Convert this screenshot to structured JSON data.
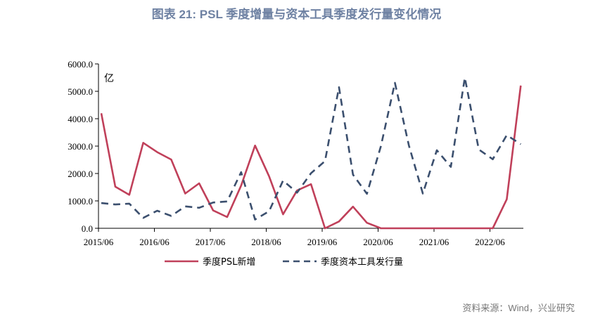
{
  "figure_title": "图表 21: PSL 季度增量与资本工具季度发行量变化情况",
  "source": "资料来源：Wind，兴业研究",
  "colors": {
    "psl": "#c0405a",
    "capital": "#3b4f6e"
  },
  "chart_data": {
    "type": "line",
    "unit_label": "亿",
    "ylim": [
      0,
      6000
    ],
    "y_ticks": [
      "0.0",
      "1000.0",
      "2000.0",
      "3000.0",
      "4000.0",
      "5000.0",
      "6000.0"
    ],
    "x_ticks": [
      "2015/06",
      "2016/06",
      "2017/06",
      "2018/06",
      "2019/06",
      "2020/06",
      "2021/06",
      "2022/06"
    ],
    "x": [
      "2015Q2",
      "2015Q3",
      "2015Q4",
      "2016Q1",
      "2016Q2",
      "2016Q3",
      "2016Q4",
      "2017Q1",
      "2017Q2",
      "2017Q3",
      "2017Q4",
      "2018Q1",
      "2018Q2",
      "2018Q3",
      "2018Q4",
      "2019Q1",
      "2019Q2",
      "2019Q3",
      "2019Q4",
      "2020Q1",
      "2020Q2",
      "2020Q3",
      "2020Q4",
      "2021Q1",
      "2021Q2",
      "2021Q3",
      "2021Q4",
      "2022Q1",
      "2022Q2",
      "2022Q3",
      "2022Q4"
    ],
    "legend_position": "bottom",
    "grid": false,
    "series": [
      {
        "name": "季度PSL新增",
        "style": "solid",
        "values": [
          4200,
          1520,
          1220,
          3120,
          2780,
          2510,
          1270,
          1640,
          650,
          410,
          1560,
          3020,
          1900,
          510,
          1380,
          1610,
          0,
          250,
          790,
          200,
          0,
          0,
          0,
          0,
          0,
          0,
          0,
          0,
          0,
          1060,
          5210
        ]
      },
      {
        "name": "季度资本工具发行量",
        "style": "dashed",
        "values": [
          920,
          870,
          900,
          380,
          640,
          450,
          800,
          750,
          940,
          980,
          2050,
          320,
          620,
          1740,
          1300,
          2010,
          2450,
          5150,
          1960,
          1260,
          3000,
          5310,
          3020,
          1270,
          2850,
          2240,
          5500,
          2880,
          2520,
          3400,
          3070
        ]
      }
    ]
  }
}
